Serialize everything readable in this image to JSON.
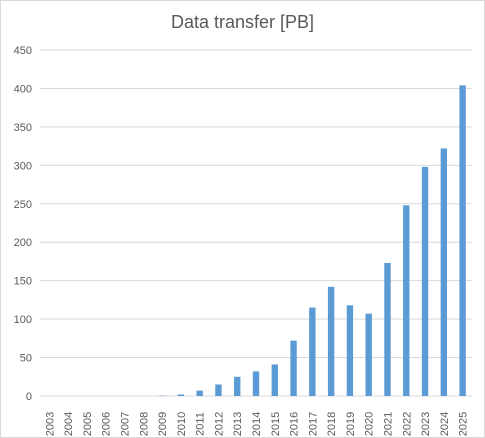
{
  "chart_data": {
    "type": "bar",
    "title": "Data transfer [PB]",
    "xlabel": "",
    "ylabel": "",
    "ylim": [
      0,
      450
    ],
    "yticks": [
      0,
      50,
      100,
      150,
      200,
      250,
      300,
      350,
      400,
      450
    ],
    "grid": true,
    "legend": "none",
    "bar_color": "#5b9bd5",
    "categories": [
      "2003",
      "2004",
      "2005",
      "2006",
      "2007",
      "2008",
      "2009",
      "2010",
      "2011",
      "2012",
      "2013",
      "2014",
      "2015",
      "2016",
      "2017",
      "2018",
      "2019",
      "2020",
      "2021",
      "2022",
      "2023",
      "2024",
      "2025"
    ],
    "values": [
      0,
      0,
      0,
      0,
      0,
      0,
      0.5,
      2,
      7,
      15,
      25,
      32,
      41,
      72,
      115,
      142,
      118,
      107,
      173,
      248,
      298,
      322,
      404
    ]
  }
}
